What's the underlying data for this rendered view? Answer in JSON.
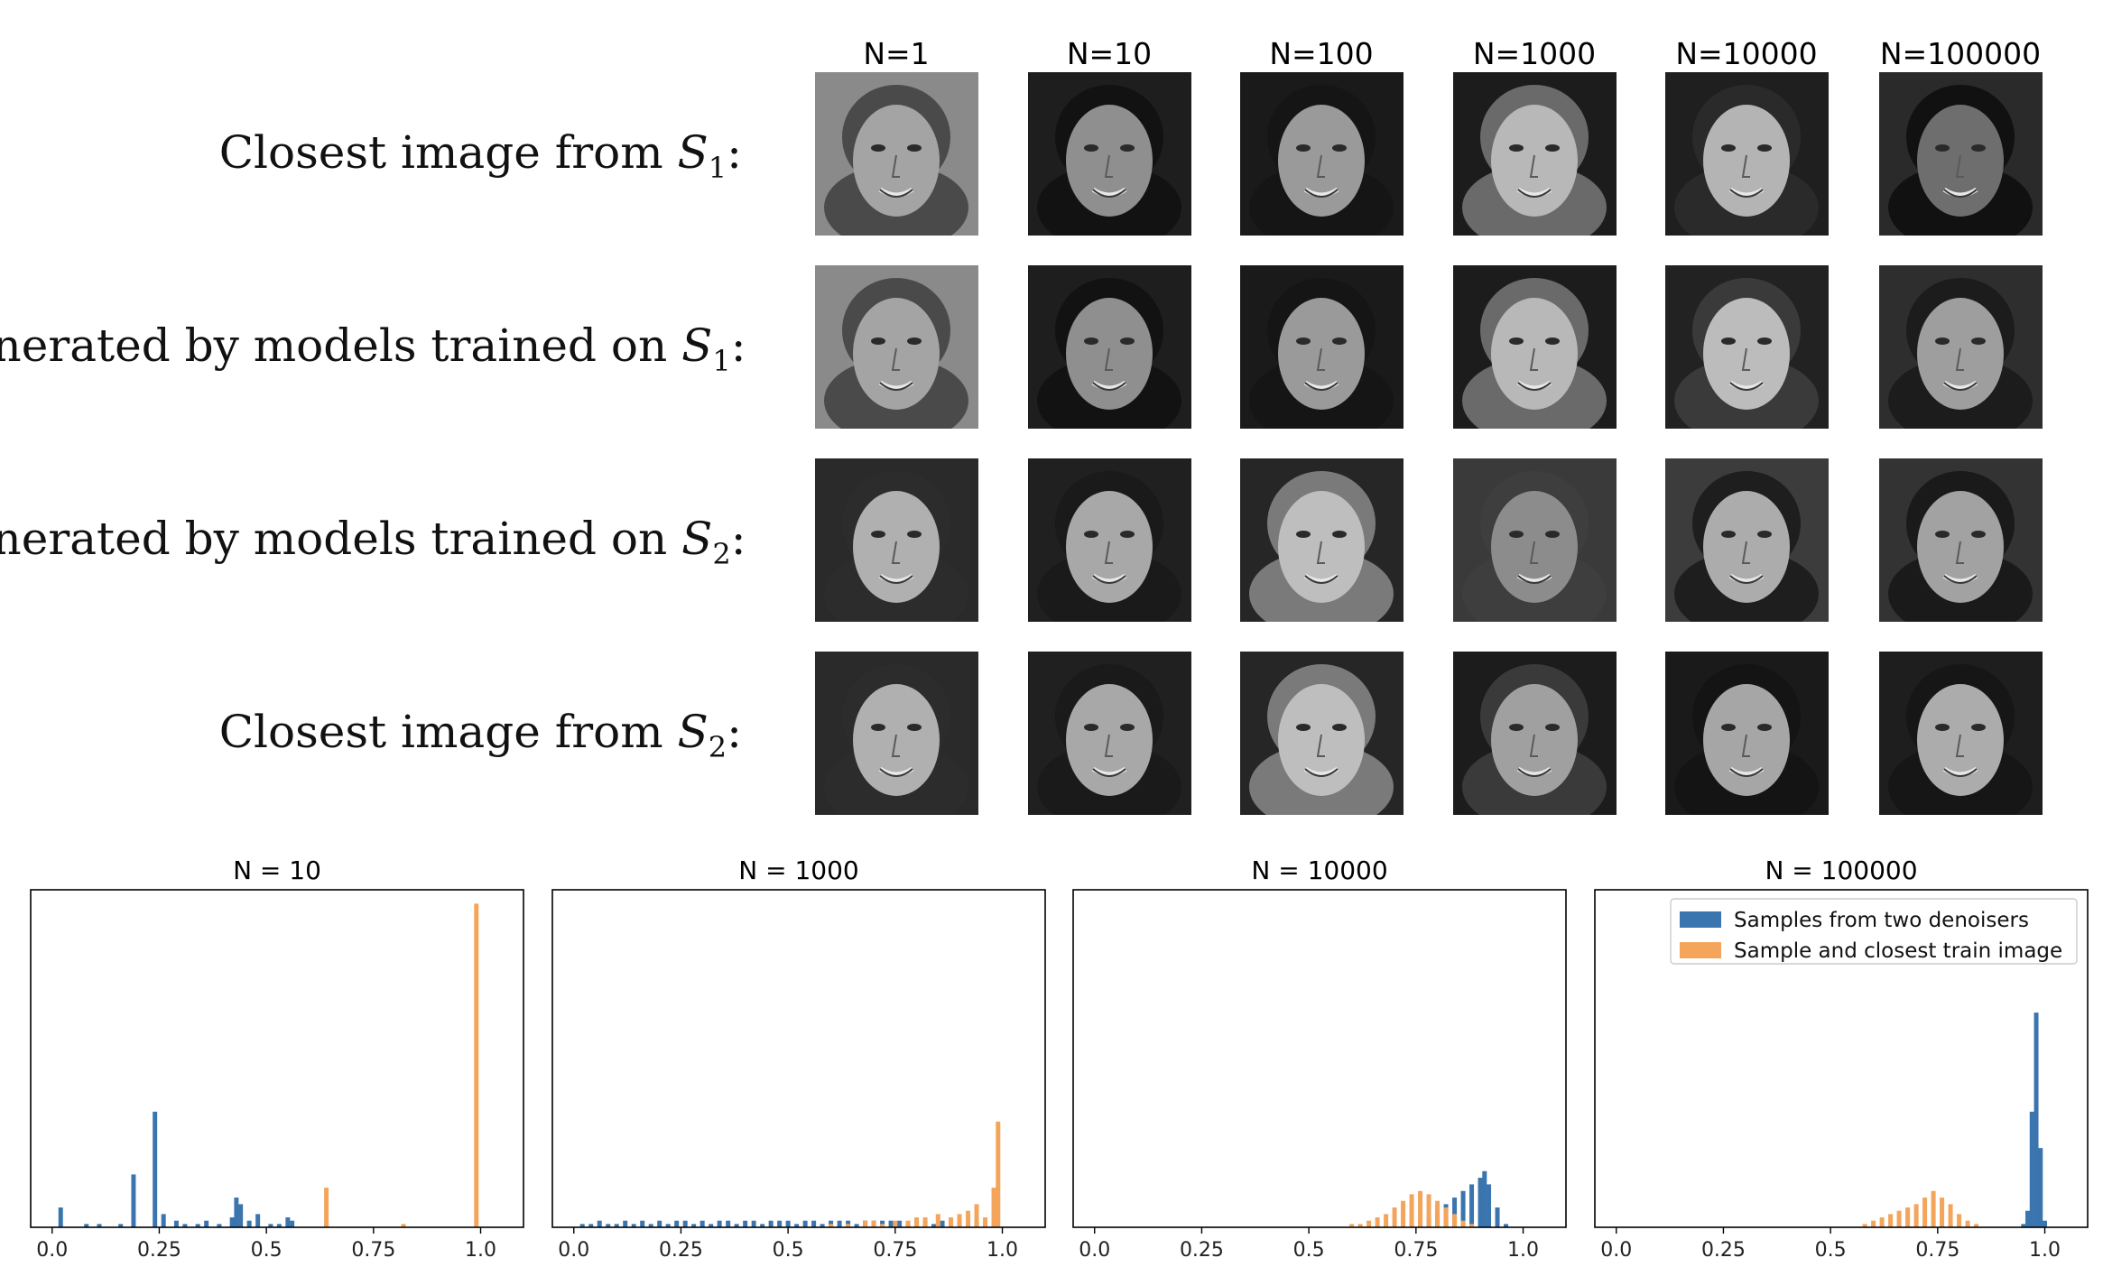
{
  "column_labels": [
    "N=1",
    "N=10",
    "N=100",
    "N=1000",
    "N=10000",
    "N=100000"
  ],
  "row_labels": [
    {
      "text": "Closest image from ",
      "set": "S",
      "sub": "1"
    },
    {
      "text": "Generated by models trained on ",
      "set": "S",
      "sub": "1"
    },
    {
      "text": "Generated by models trained on ",
      "set": "S",
      "sub": "2"
    },
    {
      "text": "Closest image from ",
      "set": "S",
      "sub": "2"
    }
  ],
  "faces": [
    [
      {
        "bg": "#8a8a8a",
        "skin": "#a4a4a4",
        "hair": "#4a4a4a"
      },
      {
        "bg": "#1e1e1e",
        "skin": "#8f8f8f",
        "hair": "#121212"
      },
      {
        "bg": "#1a1a1a",
        "skin": "#9a9a9a",
        "hair": "#151515"
      },
      {
        "bg": "#1c1c1c",
        "skin": "#b8b8b8",
        "hair": "#6a6a6a"
      },
      {
        "bg": "#1f1f1f",
        "skin": "#b4b4b4",
        "hair": "#2a2a2a"
      },
      {
        "bg": "#2a2a2a",
        "skin": "#6e6e6e",
        "hair": "#111111"
      }
    ],
    [
      {
        "bg": "#8a8a8a",
        "skin": "#a4a4a4",
        "hair": "#4a4a4a"
      },
      {
        "bg": "#1e1e1e",
        "skin": "#8f8f8f",
        "hair": "#121212"
      },
      {
        "bg": "#1a1a1a",
        "skin": "#9a9a9a",
        "hair": "#151515"
      },
      {
        "bg": "#1c1c1c",
        "skin": "#b8b8b8",
        "hair": "#6a6a6a"
      },
      {
        "bg": "#222222",
        "skin": "#bcbcbc",
        "hair": "#3a3a3a"
      },
      {
        "bg": "#2e2e2e",
        "skin": "#9e9e9e",
        "hair": "#1c1c1c"
      }
    ],
    [
      {
        "bg": "#2a2a2a",
        "skin": "#b0b0b0",
        "hair": "#2c2c2c"
      },
      {
        "bg": "#202020",
        "skin": "#a8a8a8",
        "hair": "#1a1a1a"
      },
      {
        "bg": "#262626",
        "skin": "#bebebe",
        "hair": "#7a7a7a"
      },
      {
        "bg": "#3a3a3a",
        "skin": "#8c8c8c",
        "hair": "#3e3e3e"
      },
      {
        "bg": "#3c3c3c",
        "skin": "#acacac",
        "hair": "#1e1e1e"
      },
      {
        "bg": "#333333",
        "skin": "#a2a2a2",
        "hair": "#1a1a1a"
      }
    ],
    [
      {
        "bg": "#2a2a2a",
        "skin": "#b0b0b0",
        "hair": "#2c2c2c"
      },
      {
        "bg": "#202020",
        "skin": "#a8a8a8",
        "hair": "#1a1a1a"
      },
      {
        "bg": "#262626",
        "skin": "#bebebe",
        "hair": "#7a7a7a"
      },
      {
        "bg": "#1c1c1c",
        "skin": "#a0a0a0",
        "hair": "#3a3a3a"
      },
      {
        "bg": "#1a1a1a",
        "skin": "#a6a6a6",
        "hair": "#141414"
      },
      {
        "bg": "#1e1e1e",
        "skin": "#acacac",
        "hair": "#161616"
      }
    ]
  ],
  "colors": {
    "blue": "#3b75af",
    "orange": "#f4a55b"
  },
  "chart_data": [
    {
      "type": "histogram",
      "title": "N = 10",
      "xlim": [
        -0.05,
        1.1
      ],
      "xticks": [
        "0.0",
        "0.25",
        "0.5",
        "0.75",
        "1.0"
      ],
      "xtick_values": [
        0,
        0.25,
        0.5,
        0.75,
        1.0
      ],
      "ymax": 1.0,
      "series": [
        {
          "name": "Samples from two denoisers",
          "color": "#3b75af",
          "bins": [
            [
              0.02,
              0.06
            ],
            [
              0.08,
              0.01
            ],
            [
              0.11,
              0.01
            ],
            [
              0.16,
              0.01
            ],
            [
              0.19,
              0.16
            ],
            [
              0.24,
              0.35
            ],
            [
              0.26,
              0.04
            ],
            [
              0.29,
              0.02
            ],
            [
              0.31,
              0.01
            ],
            [
              0.34,
              0.01
            ],
            [
              0.36,
              0.02
            ],
            [
              0.39,
              0.01
            ],
            [
              0.42,
              0.03
            ],
            [
              0.43,
              0.09
            ],
            [
              0.44,
              0.07
            ],
            [
              0.46,
              0.02
            ],
            [
              0.48,
              0.04
            ],
            [
              0.51,
              0.01
            ],
            [
              0.53,
              0.01
            ],
            [
              0.55,
              0.03
            ],
            [
              0.56,
              0.02
            ],
            [
              0.64,
              0.01
            ]
          ]
        },
        {
          "name": "Sample and closest train image",
          "color": "#f4a55b",
          "bins": [
            [
              0.64,
              0.12
            ],
            [
              0.82,
              0.01
            ],
            [
              0.99,
              0.98
            ]
          ]
        }
      ]
    },
    {
      "type": "histogram",
      "title": "N = 1000",
      "xlim": [
        -0.05,
        1.1
      ],
      "xticks": [
        "0.0",
        "0.25",
        "0.5",
        "0.75",
        "1.0"
      ],
      "xtick_values": [
        0,
        0.25,
        0.5,
        0.75,
        1.0
      ],
      "ymax": 1.0,
      "series": [
        {
          "name": "Samples from two denoisers",
          "color": "#3b75af",
          "bins": [
            [
              0.02,
              0.01
            ],
            [
              0.04,
              0.01
            ],
            [
              0.06,
              0.02
            ],
            [
              0.08,
              0.01
            ],
            [
              0.1,
              0.01
            ],
            [
              0.12,
              0.02
            ],
            [
              0.14,
              0.01
            ],
            [
              0.16,
              0.02
            ],
            [
              0.18,
              0.01
            ],
            [
              0.2,
              0.02
            ],
            [
              0.22,
              0.01
            ],
            [
              0.24,
              0.02
            ],
            [
              0.26,
              0.02
            ],
            [
              0.28,
              0.01
            ],
            [
              0.3,
              0.02
            ],
            [
              0.32,
              0.01
            ],
            [
              0.34,
              0.02
            ],
            [
              0.36,
              0.02
            ],
            [
              0.38,
              0.01
            ],
            [
              0.4,
              0.02
            ],
            [
              0.42,
              0.02
            ],
            [
              0.44,
              0.01
            ],
            [
              0.46,
              0.02
            ],
            [
              0.48,
              0.02
            ],
            [
              0.5,
              0.02
            ],
            [
              0.52,
              0.01
            ],
            [
              0.54,
              0.02
            ],
            [
              0.56,
              0.02
            ],
            [
              0.58,
              0.01
            ],
            [
              0.6,
              0.02
            ],
            [
              0.62,
              0.02
            ],
            [
              0.64,
              0.02
            ],
            [
              0.66,
              0.01
            ],
            [
              0.68,
              0.02
            ],
            [
              0.7,
              0.02
            ],
            [
              0.72,
              0.02
            ],
            [
              0.74,
              0.02
            ],
            [
              0.76,
              0.02
            ],
            [
              0.78,
              0.01
            ],
            [
              0.8,
              0.02
            ],
            [
              0.82,
              0.02
            ],
            [
              0.84,
              0.01
            ],
            [
              0.86,
              0.02
            ],
            [
              0.88,
              0.01
            ],
            [
              0.9,
              0.02
            ],
            [
              0.92,
              0.01
            ],
            [
              0.94,
              0.02
            ],
            [
              0.96,
              0.01
            ]
          ]
        },
        {
          "name": "Sample and closest train image",
          "color": "#f4a55b",
          "bins": [
            [
              0.6,
              0.01
            ],
            [
              0.64,
              0.01
            ],
            [
              0.68,
              0.02
            ],
            [
              0.7,
              0.02
            ],
            [
              0.72,
              0.01
            ],
            [
              0.75,
              0.02
            ],
            [
              0.78,
              0.02
            ],
            [
              0.8,
              0.03
            ],
            [
              0.82,
              0.03
            ],
            [
              0.85,
              0.04
            ],
            [
              0.88,
              0.03
            ],
            [
              0.9,
              0.04
            ],
            [
              0.92,
              0.05
            ],
            [
              0.94,
              0.07
            ],
            [
              0.96,
              0.03
            ],
            [
              0.98,
              0.12
            ],
            [
              0.99,
              0.32
            ]
          ]
        }
      ]
    },
    {
      "type": "histogram",
      "title": "N = 10000",
      "xlim": [
        -0.05,
        1.1
      ],
      "xticks": [
        "0.0",
        "0.25",
        "0.5",
        "0.75",
        "1.0"
      ],
      "xtick_values": [
        0,
        0.25,
        0.5,
        0.75,
        1.0
      ],
      "ymax": 1.0,
      "series": [
        {
          "name": "Samples from two denoisers",
          "color": "#3b75af",
          "bins": [
            [
              0.74,
              0.01
            ],
            [
              0.76,
              0.02
            ],
            [
              0.78,
              0.03
            ],
            [
              0.8,
              0.05
            ],
            [
              0.82,
              0.07
            ],
            [
              0.84,
              0.09
            ],
            [
              0.86,
              0.11
            ],
            [
              0.88,
              0.13
            ],
            [
              0.9,
              0.15
            ],
            [
              0.91,
              0.17
            ],
            [
              0.92,
              0.13
            ],
            [
              0.94,
              0.06
            ],
            [
              0.96,
              0.01
            ]
          ]
        },
        {
          "name": "Sample and closest train image",
          "color": "#f4a55b",
          "bins": [
            [
              0.6,
              0.01
            ],
            [
              0.62,
              0.01
            ],
            [
              0.64,
              0.02
            ],
            [
              0.66,
              0.03
            ],
            [
              0.68,
              0.04
            ],
            [
              0.7,
              0.06
            ],
            [
              0.72,
              0.08
            ],
            [
              0.74,
              0.1
            ],
            [
              0.76,
              0.11
            ],
            [
              0.78,
              0.1
            ],
            [
              0.8,
              0.08
            ],
            [
              0.82,
              0.06
            ],
            [
              0.84,
              0.04
            ],
            [
              0.86,
              0.02
            ],
            [
              0.88,
              0.01
            ]
          ]
        }
      ]
    },
    {
      "type": "histogram",
      "title": "N = 100000",
      "xlim": [
        -0.05,
        1.1
      ],
      "xticks": [
        "0.0",
        "0.25",
        "0.5",
        "0.75",
        "1.0"
      ],
      "xtick_values": [
        0,
        0.25,
        0.5,
        0.75,
        1.0
      ],
      "ymax": 1.0,
      "legend_position": "top-right",
      "series": [
        {
          "name": "Samples from two denoisers",
          "color": "#3b75af",
          "bins": [
            [
              0.95,
              0.01
            ],
            [
              0.96,
              0.05
            ],
            [
              0.97,
              0.35
            ],
            [
              0.98,
              0.65
            ],
            [
              0.99,
              0.24
            ],
            [
              1.0,
              0.02
            ]
          ]
        },
        {
          "name": "Sample and closest train image",
          "color": "#f4a55b",
          "bins": [
            [
              0.58,
              0.01
            ],
            [
              0.6,
              0.02
            ],
            [
              0.62,
              0.03
            ],
            [
              0.64,
              0.04
            ],
            [
              0.66,
              0.05
            ],
            [
              0.68,
              0.06
            ],
            [
              0.7,
              0.07
            ],
            [
              0.72,
              0.09
            ],
            [
              0.74,
              0.11
            ],
            [
              0.76,
              0.09
            ],
            [
              0.78,
              0.07
            ],
            [
              0.8,
              0.04
            ],
            [
              0.82,
              0.02
            ],
            [
              0.84,
              0.01
            ]
          ]
        }
      ]
    }
  ]
}
